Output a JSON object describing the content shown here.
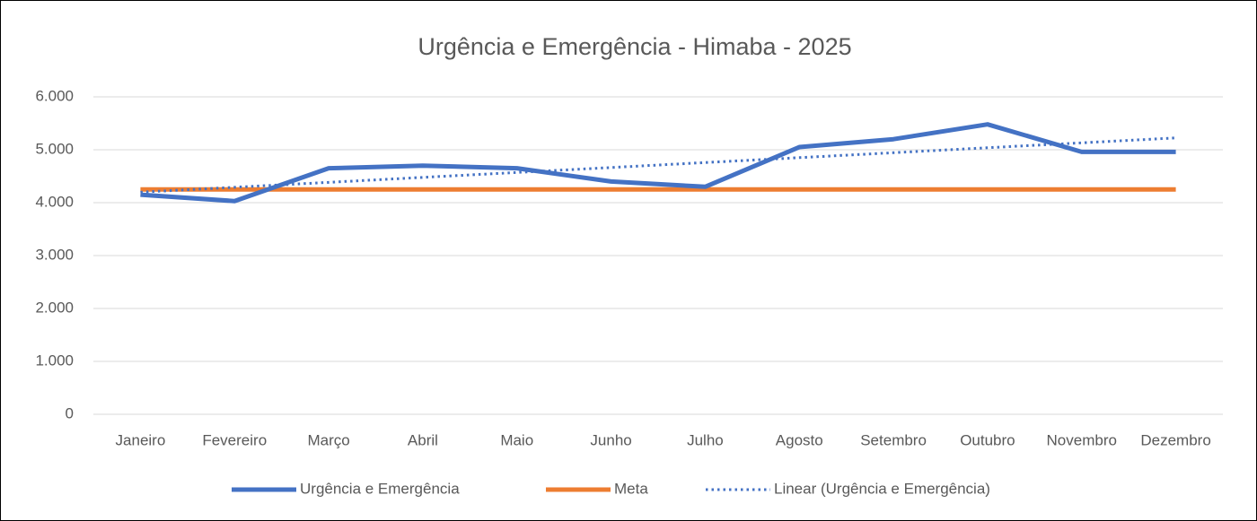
{
  "chart_data": {
    "type": "line",
    "title": "Urgência e Emergência -  Himaba - 2025",
    "categories": [
      "Janeiro",
      "Fevereiro",
      "Março",
      "Abril",
      "Maio",
      "Junho",
      "Julho",
      "Agosto",
      "Setembro",
      "Outubro",
      "Novembro",
      "Dezembro"
    ],
    "series": [
      {
        "name": "Urgência e Emergência",
        "color": "#4472c4",
        "style": "solid",
        "values": [
          4150,
          4030,
          4650,
          4700,
          4650,
          4400,
          4300,
          5050,
          5200,
          5480,
          4960,
          4960
        ]
      },
      {
        "name": "Meta",
        "color": "#ed7d31",
        "style": "solid",
        "values": [
          4250,
          4250,
          4250,
          4250,
          4250,
          4250,
          4250,
          4250,
          4250,
          4250,
          4250,
          4250
        ]
      },
      {
        "name": "Linear (Urgência e Emergência)",
        "color": "#4472c4",
        "style": "dotted",
        "values": [
          4198,
          4291,
          4384,
          4478,
          4571,
          4664,
          4758,
          4851,
          4944,
          5038,
          5131,
          5224
        ]
      }
    ],
    "ylim": [
      0,
      6000
    ],
    "yticks": [
      0,
      {
        "value": 1000,
        "label": "1.000"
      },
      {
        "value": 2000,
        "label": "2.000"
      },
      {
        "value": 3000,
        "label": "3.000"
      },
      {
        "value": 4000,
        "label": "4.000"
      },
      {
        "value": 5000,
        "label": "5.000"
      },
      {
        "value": 6000,
        "label": "6.000"
      }
    ],
    "grid": true,
    "legend": "bottom"
  }
}
